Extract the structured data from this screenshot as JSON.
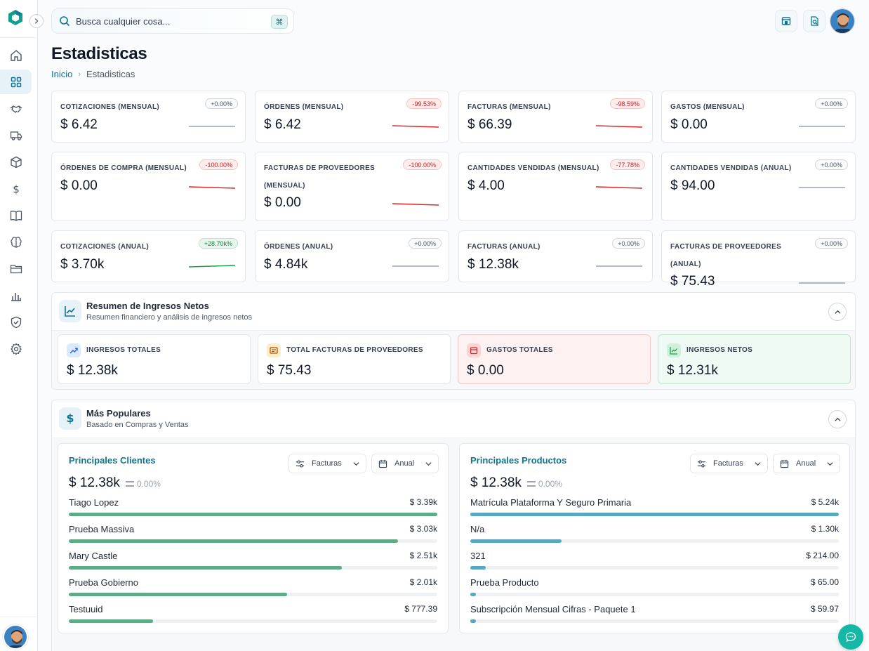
{
  "search": {
    "placeholder": "Busca cualquier cosa...",
    "shortcut": "⌘"
  },
  "page": {
    "title": "Estadisticas"
  },
  "breadcrumb": {
    "home": "Inicio",
    "current": "Estadisticas"
  },
  "sidebar": {
    "items": [
      {
        "icon": "home-icon",
        "active": false
      },
      {
        "icon": "dashboard-grid-icon",
        "active": true
      },
      {
        "icon": "handshake-icon",
        "active": false
      },
      {
        "icon": "truck-icon",
        "active": false
      },
      {
        "icon": "box-icon",
        "active": false
      },
      {
        "icon": "dollar-icon",
        "active": false
      },
      {
        "icon": "book-icon",
        "active": false
      },
      {
        "icon": "brain-icon",
        "active": false
      },
      {
        "icon": "folder-icon",
        "active": false
      },
      {
        "icon": "bar-chart-icon",
        "active": false
      },
      {
        "icon": "shield-check-icon",
        "active": false
      },
      {
        "icon": "gear-icon",
        "active": false
      }
    ]
  },
  "stats": [
    {
      "label": "COTIZACIONES (MENSUAL)",
      "value": "$ 6.42",
      "change": "+0.00%",
      "trend": "flat"
    },
    {
      "label": "ÓRDENES (MENSUAL)",
      "value": "$ 6.42",
      "change": "-99.53%",
      "trend": "down"
    },
    {
      "label": "FACTURAS (MENSUAL)",
      "value": "$ 66.39",
      "change": "-98.59%",
      "trend": "down"
    },
    {
      "label": "GASTOS (MENSUAL)",
      "value": "$ 0.00",
      "change": "+0.00%",
      "trend": "flat"
    },
    {
      "label": "ÓRDENES DE COMPRA (MENSUAL)",
      "value": "$ 0.00",
      "change": "-100.00%",
      "trend": "down"
    },
    {
      "label": "FACTURAS DE PROVEEDORES (MENSUAL)",
      "value": "$ 0.00",
      "change": "-100.00%",
      "trend": "down"
    },
    {
      "label": "CANTIDADES VENDIDAS (MENSUAL)",
      "value": "$ 4.00",
      "change": "-77.78%",
      "trend": "down"
    },
    {
      "label": "CANTIDADES VENDIDAS (ANUAL)",
      "value": "$ 94.00",
      "change": "+0.00%",
      "trend": "flat"
    },
    {
      "label": "COTIZACIONES (ANUAL)",
      "value": "$ 3.70k",
      "change": "+28.70k%",
      "trend": "up"
    },
    {
      "label": "ÓRDENES (ANUAL)",
      "value": "$ 4.84k",
      "change": "+0.00%",
      "trend": "flat"
    },
    {
      "label": "FACTURAS (ANUAL)",
      "value": "$ 12.38k",
      "change": "+0.00%",
      "trend": "flat"
    },
    {
      "label": "FACTURAS DE PROVEEDORES (ANUAL)",
      "value": "$ 75.43",
      "change": "+0.00%",
      "trend": "flat"
    }
  ],
  "net_income": {
    "title": "Resumen de Ingresos Netos",
    "subtitle": "Resumen financiero y análisis de ingresos netos",
    "cards": [
      {
        "label": "INGRESOS TOTALES",
        "value": "$ 12.38k",
        "tone": "blue"
      },
      {
        "label": "TOTAL FACTURAS DE PROVEEDORES",
        "value": "$ 75.43",
        "tone": "amber"
      },
      {
        "label": "GASTOS TOTALES",
        "value": "$ 0.00",
        "tone": "red"
      },
      {
        "label": "INGRESOS NETOS",
        "value": "$ 12.31k",
        "tone": "green"
      }
    ]
  },
  "popular": {
    "title": "Más Populares",
    "subtitle": "Basado en Compras y Ventas",
    "clients": {
      "title": "Principales Clientes",
      "filter": "Facturas",
      "period": "Anual",
      "total": "$ 12.38k",
      "change": "0.00%",
      "bar_color": "#5faa87",
      "rows": [
        {
          "name": "Tiago Lopez",
          "amount": "$ 3.39k",
          "share": 1.0
        },
        {
          "name": "Prueba Massiva",
          "amount": "$ 3.03k",
          "share": 0.894
        },
        {
          "name": "Mary Castle",
          "amount": "$ 2.51k",
          "share": 0.74
        },
        {
          "name": "Prueba Gobierno",
          "amount": "$ 2.01k",
          "share": 0.593
        },
        {
          "name": "Testuuid",
          "amount": "$ 777.39",
          "share": 0.229
        }
      ]
    },
    "products": {
      "title": "Principales Productos",
      "filter": "Facturas",
      "period": "Anual",
      "total": "$ 12.38k",
      "change": "0.00%",
      "bar_color": "#5aa8bf",
      "rows": [
        {
          "name": "Matrícula Plataforma Y Seguro Primaria",
          "amount": "$ 5.24k",
          "share": 1.0
        },
        {
          "name": "N/a",
          "amount": "$ 1.30k",
          "share": 0.248
        },
        {
          "name": "321",
          "amount": "$ 214.00",
          "share": 0.041
        },
        {
          "name": "Prueba Producto",
          "amount": "$ 65.00",
          "share": 0.012
        },
        {
          "name": "Subscripción Mensual Cifras - Paquete 1",
          "amount": "$ 59.97",
          "share": 0.011
        }
      ]
    }
  }
}
